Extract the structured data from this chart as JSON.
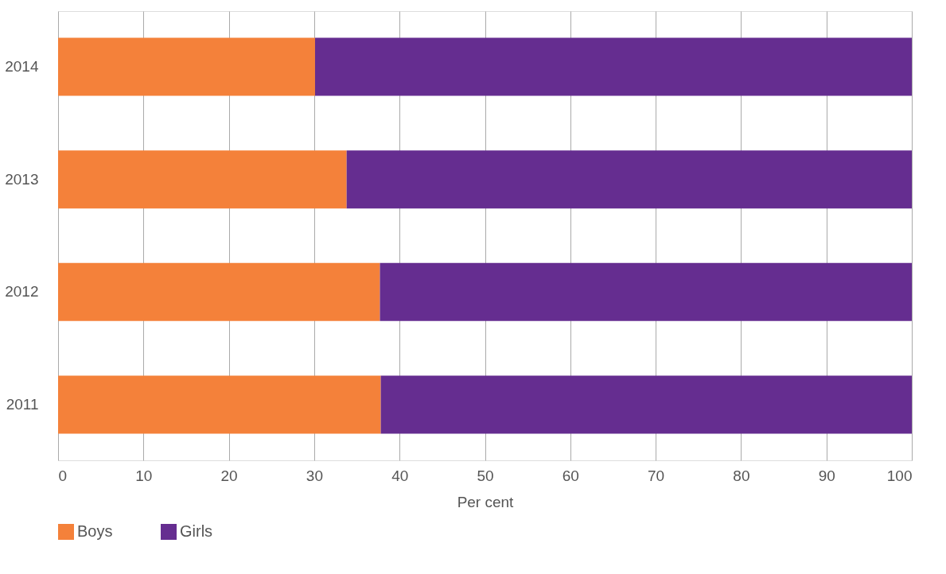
{
  "chart_data": {
    "type": "bar",
    "orientation": "horizontal",
    "stacked": true,
    "xlabel": "Per cent",
    "categories": [
      "2014",
      "2013",
      "2012",
      "2011"
    ],
    "series": [
      {
        "name": "Boys",
        "color": "#f4813a",
        "values": [
          30.1,
          33.8,
          37.7,
          37.8
        ]
      },
      {
        "name": "Girls",
        "color": "#652d90",
        "values": [
          69.9,
          66.2,
          62.3,
          62.2
        ]
      }
    ],
    "xlim": [
      0,
      100
    ],
    "xticks": [
      0,
      10,
      20,
      30,
      40,
      50,
      60,
      70,
      80,
      90,
      100
    ],
    "grid": "x",
    "legend": "bottom"
  }
}
